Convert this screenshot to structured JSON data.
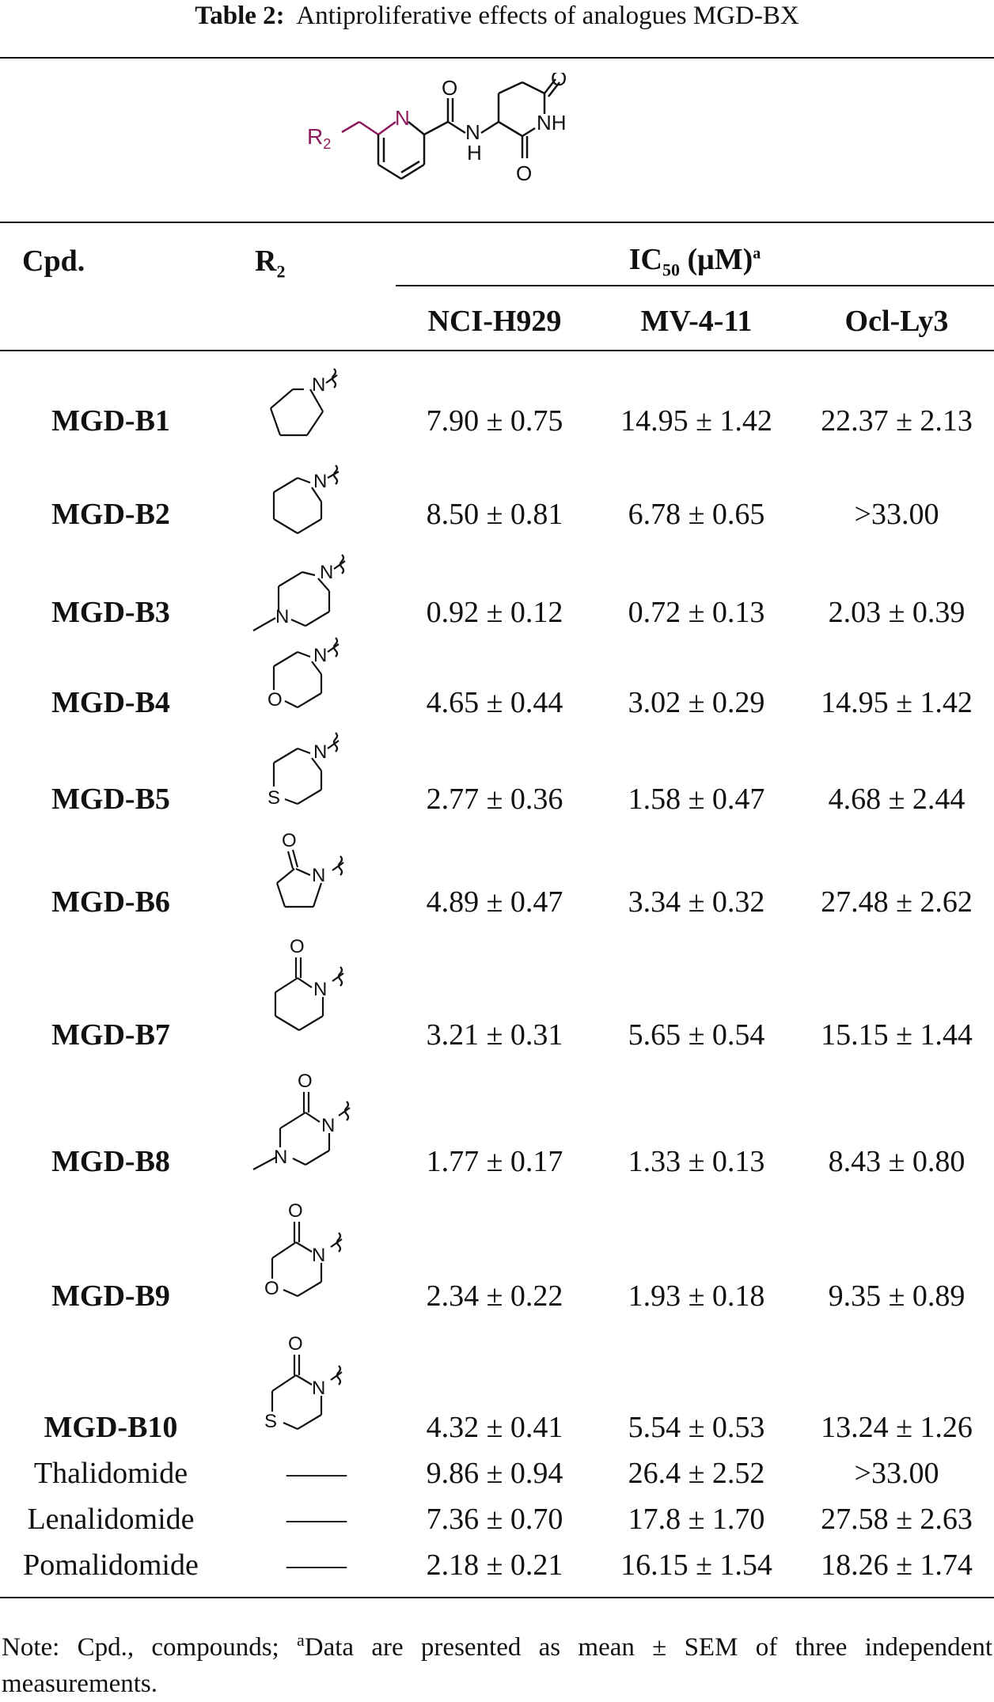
{
  "caption": {
    "label": "Table 2:",
    "text": "Antiproliferative effects of analogues MGD-BX"
  },
  "scaffold": {
    "r_group": "R",
    "r_sub": "2",
    "atom_n": "N",
    "atom_o": "O",
    "atom_nh": "NH",
    "atom_h": "H"
  },
  "header": {
    "cpd": "Cpd.",
    "r_main": "R",
    "r_sub": "2",
    "ic_main": "IC",
    "ic_sub": "50",
    "ic_unit": " (μM)",
    "ic_sup": "a",
    "cols": [
      "NCI-H929",
      "MV-4-11",
      "Ocl-Ly3"
    ]
  },
  "rows": [
    {
      "cpd": "MGD-B1",
      "bold": true,
      "r2": "pyrrolidin-1-yl",
      "v": [
        "7.90 ± 0.75",
        "14.95 ± 1.42",
        "22.37 ± 2.13"
      ]
    },
    {
      "cpd": "MGD-B2",
      "bold": true,
      "r2": "piperidin-1-yl",
      "v": [
        "8.50 ± 0.81",
        "6.78 ± 0.65",
        ">33.00"
      ]
    },
    {
      "cpd": "MGD-B3",
      "bold": true,
      "r2": "4-methylpiperazin-1-yl",
      "v": [
        "0.92 ± 0.12",
        "0.72 ± 0.13",
        "2.03 ± 0.39"
      ]
    },
    {
      "cpd": "MGD-B4",
      "bold": true,
      "r2": "morpholino",
      "v": [
        "4.65 ± 0.44",
        "3.02 ± 0.29",
        "14.95 ± 1.42"
      ]
    },
    {
      "cpd": "MGD-B5",
      "bold": true,
      "r2": "thiomorpholino",
      "v": [
        "2.77 ± 0.36",
        "1.58 ± 0.47",
        "4.68 ± 2.44"
      ]
    },
    {
      "cpd": "MGD-B6",
      "bold": true,
      "r2": "2-oxopyrrolidin-1-yl",
      "v": [
        "4.89 ± 0.47",
        "3.34 ± 0.32",
        "27.48 ± 2.62"
      ]
    },
    {
      "cpd": "MGD-B7",
      "bold": true,
      "r2": "2-oxopiperidin-1-yl",
      "v": [
        "3.21 ± 0.31",
        "5.65 ± 0.54",
        "15.15 ± 1.44"
      ]
    },
    {
      "cpd": "MGD-B8",
      "bold": true,
      "r2": "4-methyl-2-oxopiperazin-1-yl",
      "v": [
        "1.77 ± 0.17",
        "1.33 ± 0.13",
        "8.43 ± 0.80"
      ]
    },
    {
      "cpd": "MGD-B9",
      "bold": true,
      "r2": "3-oxomorpholino",
      "v": [
        "2.34 ± 0.22",
        "1.93 ± 0.18",
        "9.35 ± 0.89"
      ]
    },
    {
      "cpd": "MGD-B10",
      "bold": true,
      "r2": "3-oxothiomorpholino",
      "v": [
        "4.32 ± 0.41",
        "5.54 ± 0.53",
        "13.24 ± 1.26"
      ]
    },
    {
      "cpd": "Thalidomide",
      "bold": false,
      "r2": "——",
      "v": [
        "9.86 ± 0.94",
        "26.4 ± 2.52",
        ">33.00"
      ]
    },
    {
      "cpd": "Lenalidomide",
      "bold": false,
      "r2": "——",
      "v": [
        "7.36 ± 0.70",
        "17.8 ± 1.70",
        "27.58 ± 2.63"
      ]
    },
    {
      "cpd": "Pomalidomide",
      "bold": false,
      "r2": "——",
      "v": [
        "2.18 ± 0.21",
        "16.15 ± 1.54",
        "18.26 ± 1.74"
      ]
    }
  ],
  "structure_labels": {
    "n": "N",
    "o": "O",
    "s": "S"
  },
  "note": {
    "prefix": "Note: Cpd., compounds; ",
    "sup": "a",
    "text": "Data are presented as mean ± SEM of three independent measurements."
  },
  "colors": {
    "r_group": "#8b1a5c",
    "ink": "#111111"
  }
}
